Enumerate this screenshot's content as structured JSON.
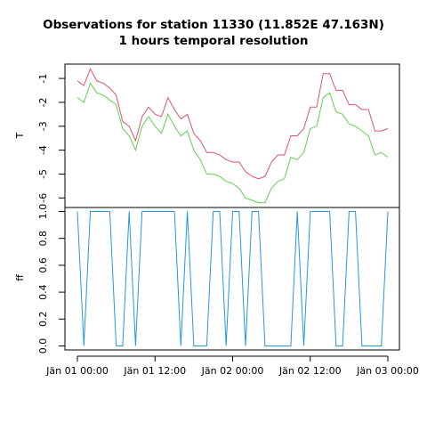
{
  "chart_data": {
    "type": "line",
    "title": "Observations for station 11330 (11.852E 47.163N)",
    "subtitle": "1 hours temporal resolution",
    "x_tick_labels": [
      "Jän 01 00:00",
      "Jän 01 12:00",
      "Jän 02 00:00",
      "Jän 02 12:00",
      "Jän 03 00:00"
    ],
    "x_tick_hours": [
      0,
      12,
      24,
      36,
      48
    ],
    "panels": [
      {
        "ylabel": "T",
        "ylim": [
          -6.4,
          -0.4
        ],
        "yticks": [
          -1,
          -2,
          -3,
          -4,
          -5,
          -6
        ],
        "ytick_labels": [
          "-1",
          "-2",
          "-3",
          "-4",
          "-5",
          "-6"
        ],
        "series": [
          {
            "color": "#df536b",
            "x": [
              0,
              1,
              2,
              3,
              4,
              5,
              6,
              7,
              8,
              9,
              10,
              11,
              12,
              13,
              14,
              15,
              16,
              17,
              18,
              19,
              20,
              21,
              22,
              23,
              24,
              25,
              26,
              27,
              28,
              29,
              30,
              31,
              32,
              33,
              34,
              35,
              36,
              37,
              38,
              39,
              40,
              41,
              42,
              43,
              44,
              45,
              46,
              47,
              48
            ],
            "values": [
              -1.1,
              -1.3,
              -0.6,
              -1.1,
              -1.2,
              -1.4,
              -1.7,
              -2.8,
              -3.0,
              -3.6,
              -2.6,
              -2.2,
              -2.5,
              -2.6,
              -1.8,
              -2.3,
              -2.7,
              -2.5,
              -3.3,
              -3.6,
              -4.1,
              -4.1,
              -4.2,
              -4.4,
              -4.5,
              -4.5,
              -4.9,
              -5.1,
              -5.2,
              -5.1,
              -4.5,
              -4.2,
              -4.2,
              -3.4,
              -3.4,
              -3.1,
              -2.2,
              -2.2,
              -0.8,
              -0.8,
              -1.5,
              -1.5,
              -2.1,
              -2.1,
              -2.3,
              -2.3,
              -3.2,
              -3.2,
              -3.1
            ]
          },
          {
            "color": "#61d04f",
            "x": [
              0,
              1,
              2,
              3,
              4,
              5,
              6,
              7,
              8,
              9,
              10,
              11,
              12,
              13,
              14,
              15,
              16,
              17,
              18,
              19,
              20,
              21,
              22,
              23,
              24,
              25,
              26,
              27,
              28,
              29,
              30,
              31,
              32,
              33,
              34,
              35,
              36,
              37,
              38,
              39,
              40,
              41,
              42,
              43,
              44,
              45,
              46,
              47,
              48
            ],
            "values": [
              -1.8,
              -2.0,
              -1.2,
              -1.6,
              -1.7,
              -1.9,
              -2.1,
              -3.1,
              -3.4,
              -4.0,
              -3.0,
              -2.6,
              -3.0,
              -3.3,
              -2.5,
              -3.0,
              -3.4,
              -3.2,
              -4.0,
              -4.4,
              -5.0,
              -5.0,
              -5.1,
              -5.3,
              -5.4,
              -5.6,
              -6.0,
              -6.1,
              -6.2,
              -6.2,
              -5.6,
              -5.3,
              -5.2,
              -4.3,
              -4.4,
              -4.1,
              -3.1,
              -3.0,
              -1.8,
              -1.6,
              -2.4,
              -2.5,
              -2.9,
              -3.0,
              -3.2,
              -3.4,
              -4.2,
              -4.1,
              -4.3
            ]
          }
        ]
      },
      {
        "ylabel": "ff",
        "ylim": [
          -0.03,
          1.03
        ],
        "yticks": [
          0.0,
          0.2,
          0.4,
          0.6,
          0.8,
          1.0
        ],
        "ytick_labels": [
          "0.0",
          "0.2",
          "0.4",
          "0.6",
          "0.8",
          "1.0"
        ],
        "series": [
          {
            "color": "#2297e6",
            "x": [
              0,
              1,
              2,
              3,
              4,
              5,
              6,
              7,
              8,
              9,
              10,
              11,
              12,
              13,
              14,
              15,
              16,
              17,
              18,
              19,
              20,
              21,
              22,
              23,
              24,
              25,
              26,
              27,
              28,
              29,
              30,
              31,
              32,
              33,
              34,
              35,
              36,
              37,
              38,
              39,
              40,
              41,
              42,
              43,
              44,
              45,
              46,
              47,
              48
            ],
            "values": [
              1,
              0,
              1,
              1,
              1,
              1,
              0,
              0,
              1,
              0,
              1,
              1,
              1,
              1,
              1,
              1,
              0,
              1,
              0,
              0,
              0,
              1,
              1,
              0,
              1,
              1,
              0,
              1,
              1,
              0,
              0,
              0,
              0,
              0,
              1,
              0,
              1,
              1,
              1,
              1,
              0,
              0,
              1,
              1,
              0,
              0,
              0,
              0,
              1
            ]
          }
        ]
      }
    ]
  }
}
